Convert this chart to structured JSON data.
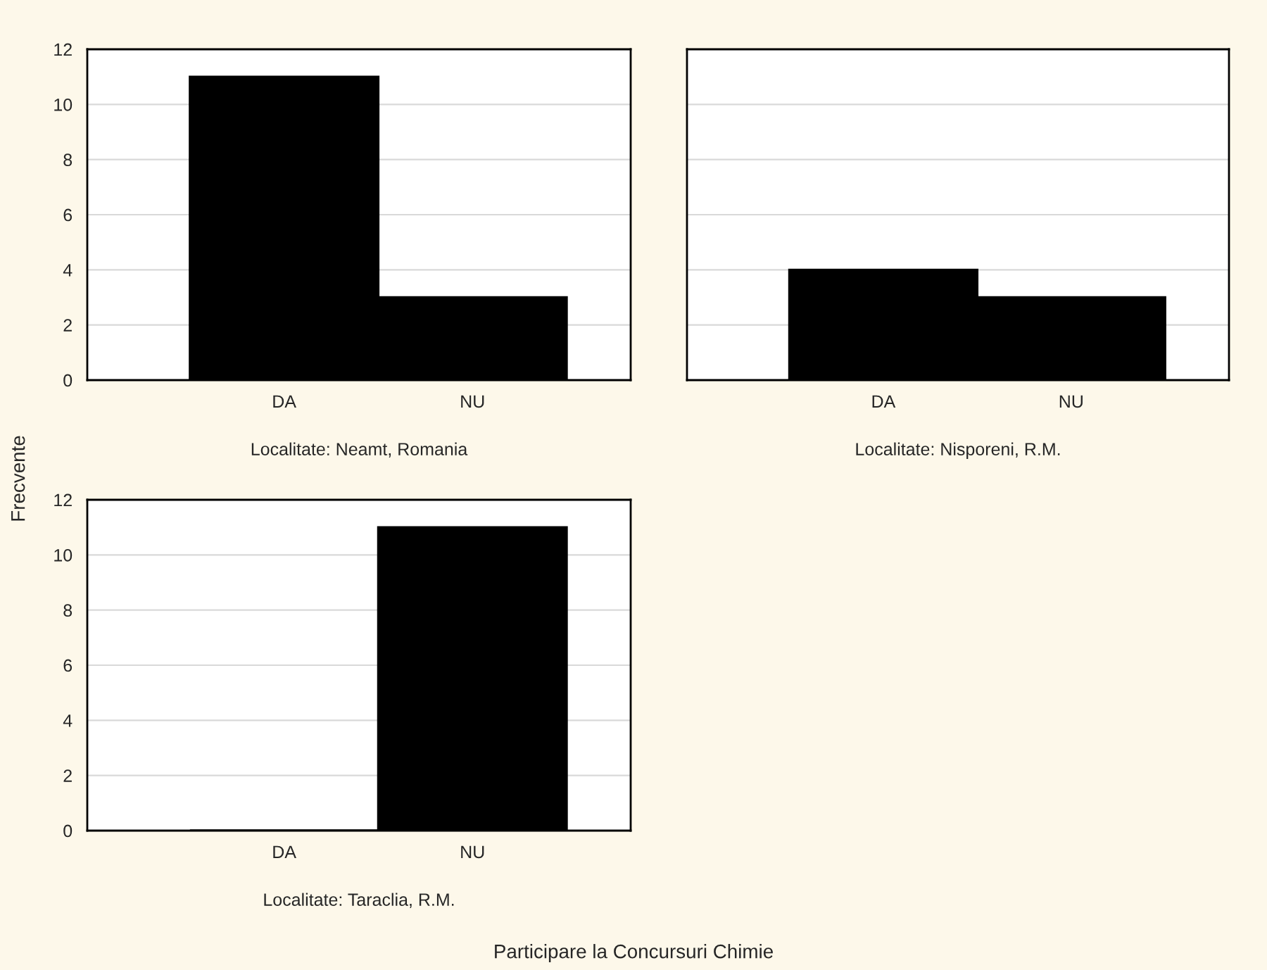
{
  "chart_data": [
    {
      "type": "bar",
      "xlabel": "Localitate: Neamt, Romania",
      "ylabel": "Frecvente",
      "categories": [
        "DA",
        "NU"
      ],
      "values": [
        11,
        3
      ],
      "color": "#000000",
      "ylim": [
        0,
        12
      ],
      "yticks": [
        0,
        2,
        4,
        6,
        8,
        10,
        12
      ],
      "grid": "y"
    },
    {
      "type": "bar",
      "xlabel": "Localitate: Nisporeni, R.M.",
      "categories": [
        "DA",
        "NU"
      ],
      "values": [
        4,
        3
      ],
      "color": "#000000",
      "ylim": [
        0,
        12
      ],
      "yticks": [
        0,
        2,
        4,
        6,
        8,
        10,
        12
      ],
      "grid": "y",
      "tick_labels": "x"
    },
    {
      "type": "bar",
      "xlabel": "Localitate: Taraclia, R.M.",
      "categories": [
        "DA",
        "NU"
      ],
      "values": [
        0,
        11
      ],
      "color": "#000000",
      "ylim": [
        0,
        12
      ],
      "yticks": [
        0,
        2,
        4,
        6,
        8,
        10,
        12
      ],
      "grid": "y",
      "annotations": [
        "Participare la Concursuri Chimie"
      ]
    }
  ]
}
